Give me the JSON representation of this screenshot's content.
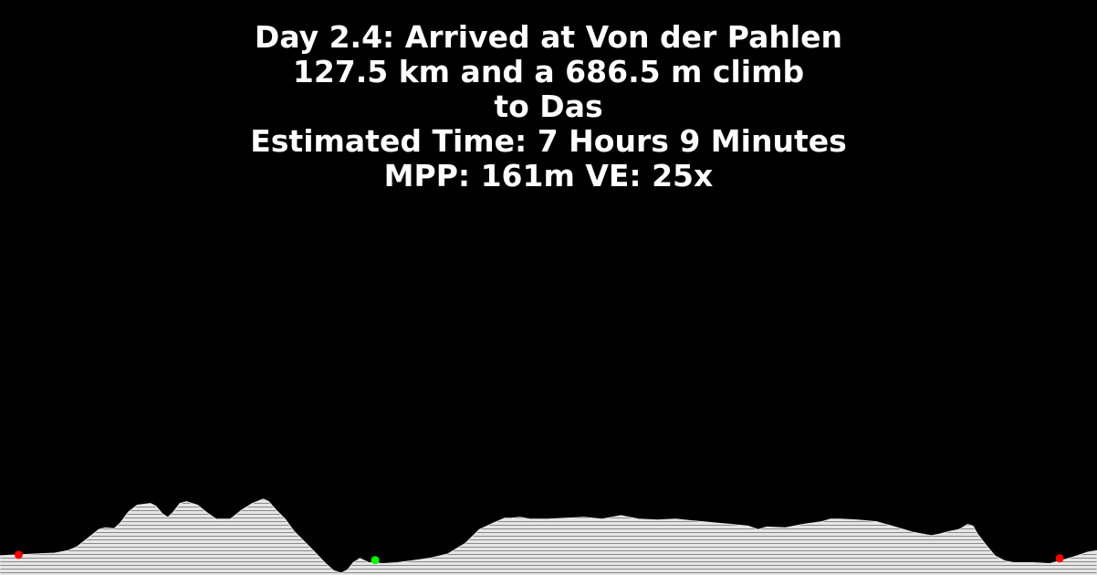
{
  "header": {
    "line1": "Day 2.4: Arrived at Von der Pahlen",
    "line2": "127.5 km and a 686.5 m climb",
    "line3": "to Das",
    "line4": "Estimated Time: 7 Hours 9 Minutes",
    "line5": "MPP: 161m VE: 25x"
  },
  "colors": {
    "background": "#000000",
    "text": "#ffffff",
    "profile_fill": "#e6e6e6",
    "profile_hatch": "#8a8a8a",
    "marker_red": "#ff0000",
    "marker_green": "#00ff00"
  },
  "chart_data": {
    "type": "area",
    "title": "Day 2.4: Arrived at Von der Pahlen",
    "xlabel": "",
    "ylabel": "",
    "grid": false,
    "legend": "none",
    "x_units": "fraction of route",
    "y_units": "relative elevation (0 = lowest point)",
    "ylim": [
      0,
      90
    ],
    "series": [
      {
        "x": [
          0.0,
          0.017,
          0.031,
          0.05,
          0.062,
          0.07,
          0.08,
          0.09,
          0.096,
          0.104,
          0.11,
          0.117,
          0.125,
          0.137,
          0.142,
          0.148,
          0.153,
          0.158,
          0.164,
          0.17,
          0.18,
          0.188,
          0.197,
          0.21,
          0.22,
          0.23,
          0.24,
          0.245,
          0.252,
          0.26,
          0.268,
          0.276,
          0.287,
          0.296,
          0.304,
          0.311,
          0.317,
          0.322,
          0.328,
          0.333,
          0.336,
          0.341,
          0.349,
          0.362,
          0.374,
          0.391,
          0.408,
          0.424,
          0.437,
          0.449,
          0.46,
          0.466,
          0.474,
          0.483,
          0.499,
          0.516,
          0.532,
          0.549,
          0.566,
          0.574,
          0.582,
          0.599,
          0.616,
          0.632,
          0.649,
          0.666,
          0.682,
          0.691,
          0.699,
          0.716,
          0.732,
          0.749,
          0.757,
          0.766,
          0.782,
          0.799,
          0.816,
          0.832,
          0.849,
          0.857,
          0.866,
          0.874,
          0.877,
          0.882,
          0.887,
          0.891,
          0.899,
          0.907,
          0.916,
          0.924,
          0.932,
          0.941,
          0.957,
          0.966,
          0.974,
          0.982,
          0.991,
          1.0
        ],
        "values": [
          20,
          21,
          22,
          23,
          26,
          30,
          40,
          50,
          52,
          51,
          58,
          70,
          78,
          80,
          77,
          68,
          64,
          70,
          80,
          82,
          78,
          70,
          62,
          62,
          72,
          80,
          85,
          82,
          72,
          62,
          48,
          38,
          24,
          12,
          3,
          0,
          4,
          12,
          17,
          14,
          12,
          12,
          11,
          12,
          14,
          17,
          22,
          34,
          50,
          57,
          63,
          63,
          64,
          62,
          62,
          63,
          64,
          62,
          66,
          64,
          62,
          61,
          62,
          60,
          58,
          56,
          54,
          50,
          53,
          52,
          56,
          59,
          62,
          62,
          61,
          59,
          53,
          47,
          43,
          45,
          48,
          50,
          52,
          56,
          54,
          45,
          32,
          20,
          14,
          12,
          12,
          12,
          11,
          14,
          17,
          20,
          24,
          26
        ]
      }
    ],
    "markers": [
      {
        "x": 0.017,
        "y": 21,
        "color": "red"
      },
      {
        "x": 0.342,
        "y": 15,
        "color": "green"
      },
      {
        "x": 0.966,
        "y": 17,
        "color": "red"
      }
    ]
  }
}
